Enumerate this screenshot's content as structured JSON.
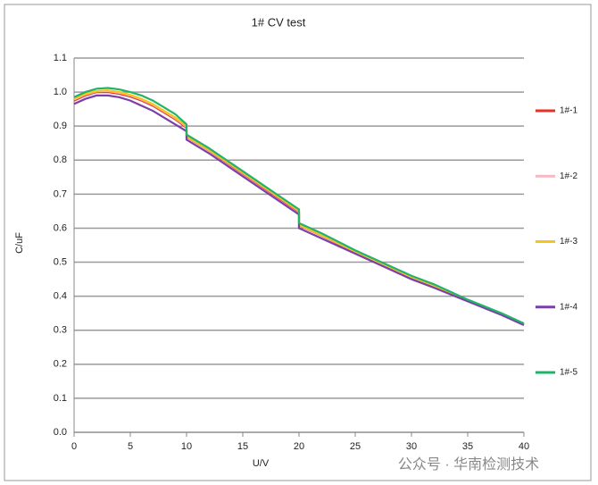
{
  "chart_data": {
    "type": "line",
    "title": "1# CV test",
    "x_label": "U/V",
    "y_label": "C/uF",
    "x": [
      0,
      1,
      2,
      3,
      4,
      5,
      6,
      7,
      8,
      9,
      10,
      10,
      12,
      14,
      16,
      18,
      20,
      20,
      22,
      25,
      28,
      30,
      32,
      35,
      38,
      40
    ],
    "series": [
      {
        "name": "1#-1",
        "color": "#e8302a",
        "values": [
          0.975,
          0.99,
          1.0,
          1.0,
          0.995,
          0.987,
          0.975,
          0.96,
          0.94,
          0.92,
          0.895,
          0.868,
          0.828,
          0.783,
          0.738,
          0.693,
          0.648,
          0.608,
          0.578,
          0.53,
          0.485,
          0.455,
          0.43,
          0.387,
          0.347,
          0.317
        ]
      },
      {
        "name": "1#-2",
        "color": "#f7b8c4",
        "values": [
          0.978,
          0.993,
          1.002,
          1.003,
          0.998,
          0.99,
          0.978,
          0.963,
          0.943,
          0.923,
          0.898,
          0.869,
          0.829,
          0.785,
          0.74,
          0.695,
          0.65,
          0.609,
          0.579,
          0.531,
          0.486,
          0.456,
          0.431,
          0.388,
          0.348,
          0.318
        ]
      },
      {
        "name": "1#-3",
        "color": "#f5c518",
        "values": [
          0.98,
          0.995,
          1.003,
          1.005,
          1.0,
          0.992,
          0.98,
          0.965,
          0.945,
          0.925,
          0.9,
          0.87,
          0.83,
          0.786,
          0.741,
          0.696,
          0.651,
          0.61,
          0.58,
          0.532,
          0.487,
          0.457,
          0.432,
          0.388,
          0.348,
          0.318
        ]
      },
      {
        "name": "1#-4",
        "color": "#7b3fa8",
        "values": [
          0.965,
          0.98,
          0.99,
          0.99,
          0.985,
          0.975,
          0.96,
          0.945,
          0.925,
          0.905,
          0.885,
          0.86,
          0.82,
          0.775,
          0.73,
          0.685,
          0.64,
          0.6,
          0.57,
          0.525,
          0.48,
          0.45,
          0.425,
          0.385,
          0.345,
          0.315
        ]
      },
      {
        "name": "1#-5",
        "color": "#22b36b",
        "values": [
          0.985,
          1.0,
          1.01,
          1.012,
          1.008,
          1.0,
          0.99,
          0.975,
          0.955,
          0.935,
          0.905,
          0.875,
          0.835,
          0.79,
          0.745,
          0.7,
          0.655,
          0.615,
          0.585,
          0.535,
          0.49,
          0.46,
          0.435,
          0.39,
          0.35,
          0.32
        ]
      }
    ],
    "xlim": [
      0,
      40
    ],
    "xticks": [
      0,
      5,
      10,
      15,
      20,
      25,
      30,
      35,
      40
    ],
    "ylim": [
      0,
      1.1
    ],
    "yticks": [
      {
        "value": 0,
        "label": "0.0"
      },
      0.1,
      0.2,
      0.3,
      0.4,
      0.5,
      0.6,
      0.7,
      0.8,
      0.9,
      {
        "value": 1,
        "label": "1.0"
      },
      1.1
    ],
    "grid": true,
    "legend": "right",
    "watermark": "公众号 · 华南检测技术"
  }
}
